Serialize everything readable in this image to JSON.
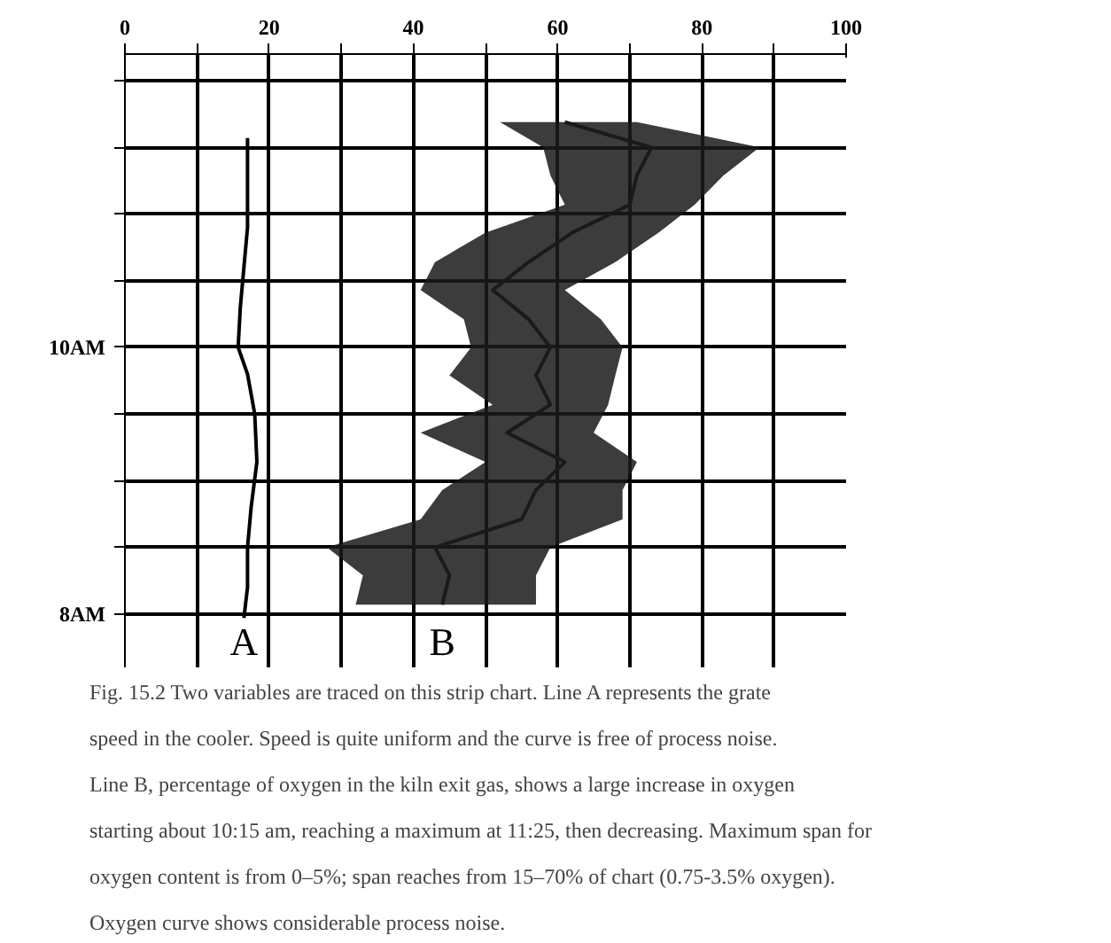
{
  "chart_data": {
    "type": "line",
    "orientation": "horizontal",
    "grid": true,
    "marker": "none",
    "line_style": "solid",
    "xlim": [
      0,
      100
    ],
    "xticks": [
      0,
      {
        "value": 10,
        "label": null
      },
      20,
      {
        "value": 30,
        "label": null
      },
      40,
      {
        "value": 50,
        "label": null
      },
      60,
      {
        "value": 70,
        "label": null
      },
      80,
      {
        "value": 90,
        "label": null
      },
      100
    ],
    "ylim": [
      7.6,
      12.2
    ],
    "yticks": [
      {
        "value": 8,
        "label": "8AM"
      },
      {
        "value": 8.5,
        "label": null
      },
      {
        "value": 9,
        "label": null
      },
      {
        "value": 9.5,
        "label": null
      },
      {
        "value": 10,
        "label": "10AM"
      },
      {
        "value": 10.5,
        "label": null
      },
      {
        "value": 11,
        "label": null
      },
      {
        "value": 11.5,
        "label": null
      },
      {
        "value": 12,
        "label": null
      }
    ],
    "series": [
      {
        "name": "A",
        "color": "#000000",
        "x": [
          7.97,
          8.2,
          8.5,
          8.8,
          9.14,
          9.5,
          9.8,
          10.0,
          10.3,
          10.6,
          10.9,
          11.2,
          11.57
        ],
        "values": [
          16.5,
          17,
          17,
          17.5,
          18.3,
          18,
          17,
          15.7,
          16,
          16.5,
          17,
          17,
          17
        ]
      },
      {
        "name": "B",
        "color": "#1a1a1a",
        "x": [
          8.07,
          8.29,
          8.5,
          8.71,
          8.93,
          9.14,
          9.36,
          9.57,
          9.79,
          10.0,
          10.21,
          10.43,
          10.64,
          10.86,
          11.07,
          11.29,
          11.5,
          11.69
        ],
        "values": [
          44,
          45,
          43,
          55,
          57,
          61,
          53,
          59,
          57,
          59,
          56,
          51,
          56,
          62,
          70,
          71,
          73,
          61
        ],
        "lower": [
          32,
          33,
          28,
          41,
          44,
          50,
          41,
          51,
          45,
          48,
          47,
          41,
          43,
          50,
          61,
          59,
          58,
          52
        ],
        "upper": [
          57,
          57,
          59,
          69,
          69,
          71,
          65,
          67,
          68,
          69,
          66,
          61,
          68,
          74,
          79,
          83,
          88,
          71
        ]
      }
    ],
    "annotations": [
      "Fig. 15.2  Two variables are traced on this strip chart.  Line A represents the grate speed in the cooler.  Speed is quite uniform and the curve is free of process noise.  Line B, percentage of oxygen in the kiln exit gas, shows a large increase in oxygen starting about 10:15 am, reaching a maximum at 11:25, then decreasing.  Maximum span for oxygen content is from 0–5%; span reaches from 15–70% of chart (0.75-3.5% oxygen).  Oxygen curve shows considerable process noise."
    ]
  }
}
